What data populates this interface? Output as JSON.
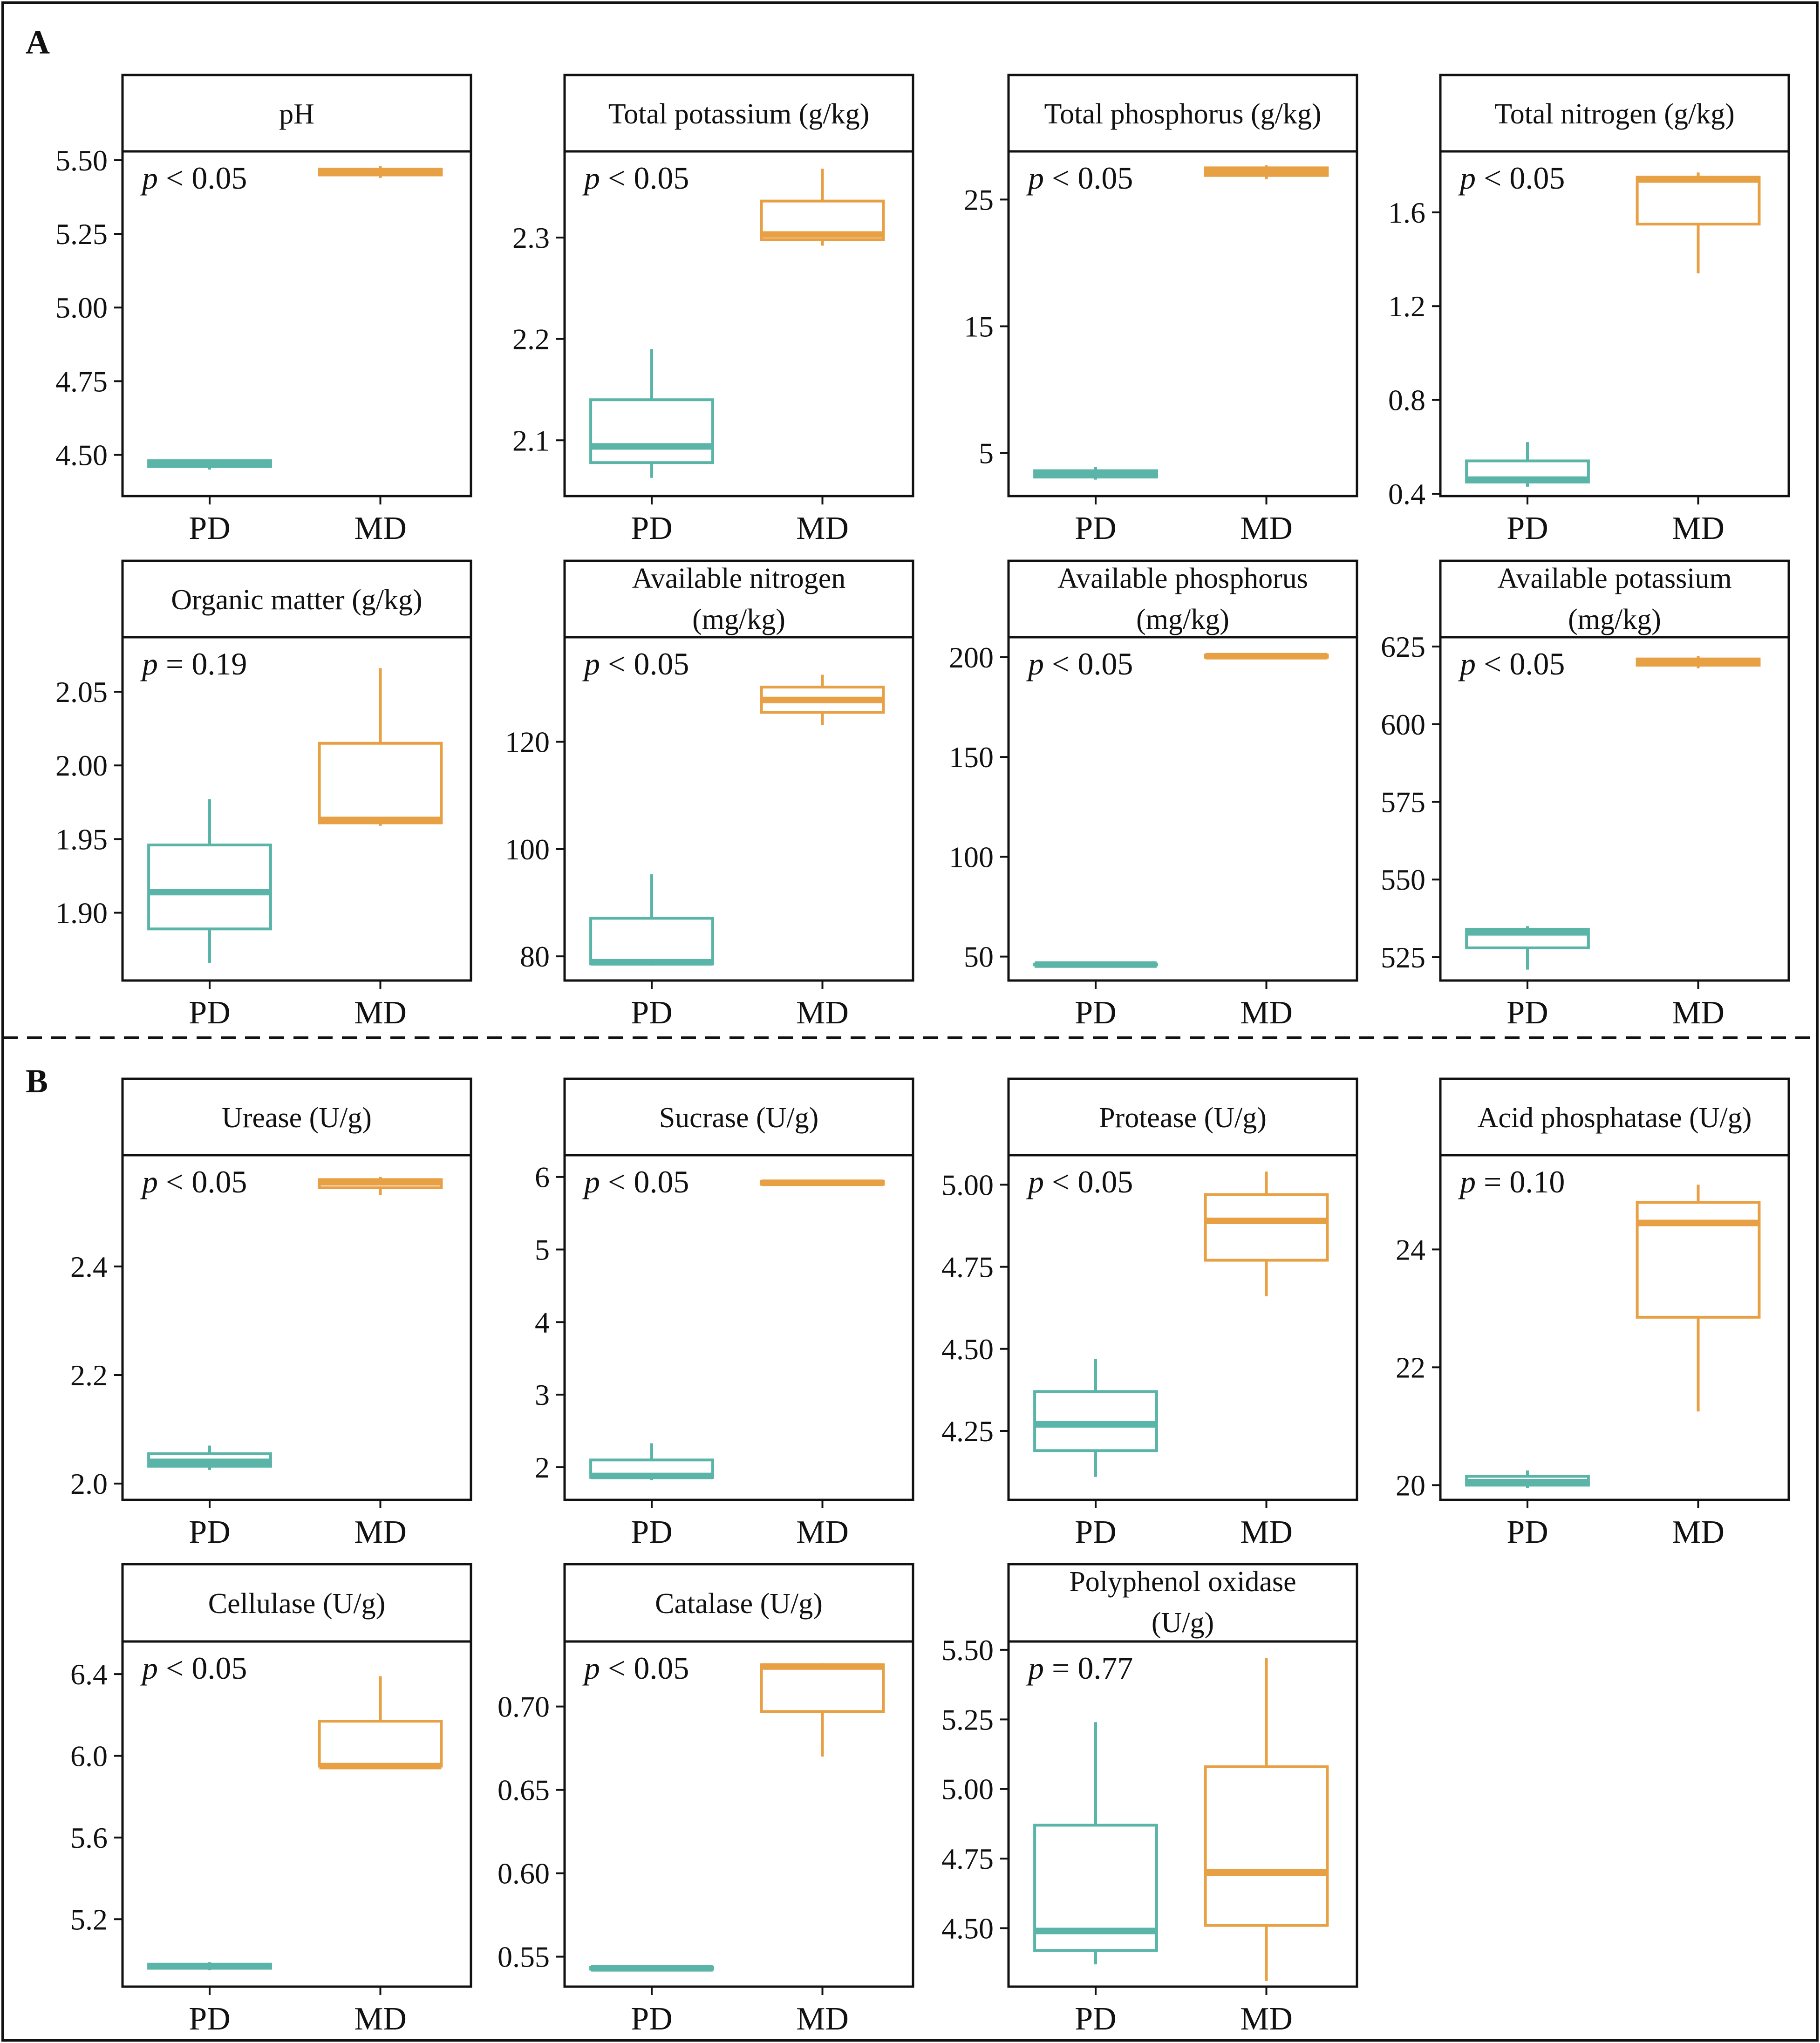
{
  "section_labels": [
    "A",
    "B"
  ],
  "group_labels": [
    "PD",
    "MD"
  ],
  "colors": {
    "PD": "#5ab5a8",
    "MD": "#e8a045",
    "axis": "#111111",
    "frame": "#111111"
  },
  "chart_data": [
    {
      "type": "box",
      "section": "A",
      "title": [
        "pH"
      ],
      "p_text": "p < 0.05",
      "categories": [
        "PD",
        "MD"
      ],
      "yticks": [
        4.5,
        4.75,
        5.0,
        5.25,
        5.5
      ],
      "tick_labels": [
        "4.50",
        "4.75",
        "5.00",
        "5.25",
        "5.50"
      ],
      "ylim": [
        4.36,
        5.53
      ],
      "boxes": [
        {
          "group": "PD",
          "min": 4.45,
          "q1": 4.46,
          "median": 4.47,
          "q3": 4.48,
          "max": 4.48
        },
        {
          "group": "MD",
          "min": 5.44,
          "q1": 5.45,
          "median": 5.46,
          "q3": 5.47,
          "max": 5.48
        }
      ]
    },
    {
      "type": "box",
      "section": "A",
      "title": [
        "Total potassium (g/kg)"
      ],
      "p_text": "p < 0.05",
      "categories": [
        "PD",
        "MD"
      ],
      "yticks": [
        2.1,
        2.2,
        2.3
      ],
      "tick_labels": [
        "2.1",
        "2.2",
        "2.3"
      ],
      "ylim": [
        2.045,
        2.385
      ],
      "boxes": [
        {
          "group": "PD",
          "min": 2.063,
          "q1": 2.078,
          "median": 2.094,
          "q3": 2.14,
          "max": 2.19
        },
        {
          "group": "MD",
          "min": 2.292,
          "q1": 2.298,
          "median": 2.303,
          "q3": 2.336,
          "max": 2.368
        }
      ]
    },
    {
      "type": "box",
      "section": "A",
      "title": [
        "Total phosphorus (g/kg)"
      ],
      "p_text": "p < 0.05",
      "categories": [
        "PD",
        "MD"
      ],
      "yticks": [
        5,
        15,
        25
      ],
      "tick_labels": [
        "5",
        "15",
        "25"
      ],
      "ylim": [
        1.6,
        28.8
      ],
      "boxes": [
        {
          "group": "PD",
          "min": 2.9,
          "q1": 3.1,
          "median": 3.3,
          "q3": 3.6,
          "max": 3.9
        },
        {
          "group": "MD",
          "min": 26.6,
          "q1": 26.9,
          "median": 27.2,
          "q3": 27.5,
          "max": 27.7
        }
      ]
    },
    {
      "type": "box",
      "section": "A",
      "title": [
        "Total nitrogen (g/kg)"
      ],
      "p_text": "p < 0.05",
      "categories": [
        "PD",
        "MD"
      ],
      "yticks": [
        0.4,
        0.8,
        1.2,
        1.6
      ],
      "tick_labels": [
        "0.4",
        "0.8",
        "1.2",
        "1.6"
      ],
      "ylim": [
        0.39,
        1.86
      ],
      "boxes": [
        {
          "group": "PD",
          "min": 0.43,
          "q1": 0.45,
          "median": 0.46,
          "q3": 0.54,
          "max": 0.62
        },
        {
          "group": "MD",
          "min": 1.34,
          "q1": 1.55,
          "median": 1.74,
          "q3": 1.75,
          "max": 1.77
        }
      ]
    },
    {
      "type": "box",
      "section": "A",
      "title": [
        "Organic matter (g/kg)"
      ],
      "p_text": "p = 0.19",
      "categories": [
        "PD",
        "MD"
      ],
      "yticks": [
        1.9,
        1.95,
        2.0,
        2.05
      ],
      "tick_labels": [
        "1.90",
        "1.95",
        "2.00",
        "2.05"
      ],
      "ylim": [
        1.854,
        2.087
      ],
      "boxes": [
        {
          "group": "PD",
          "min": 1.866,
          "q1": 1.889,
          "median": 1.914,
          "q3": 1.946,
          "max": 1.977
        },
        {
          "group": "MD",
          "min": 1.959,
          "q1": 1.961,
          "median": 1.963,
          "q3": 2.015,
          "max": 2.066
        }
      ]
    },
    {
      "type": "box",
      "section": "A",
      "title": [
        "Available nitrogen",
        "(mg/kg)"
      ],
      "p_text": "p < 0.05",
      "categories": [
        "PD",
        "MD"
      ],
      "yticks": [
        80,
        100,
        120
      ],
      "tick_labels": [
        "80",
        "100",
        "120"
      ],
      "ylim": [
        75.5,
        139.5
      ],
      "boxes": [
        {
          "group": "PD",
          "min": 78.3,
          "q1": 78.6,
          "median": 78.9,
          "q3": 87.1,
          "max": 95.3
        },
        {
          "group": "MD",
          "min": 123.1,
          "q1": 125.5,
          "median": 127.8,
          "q3": 130.2,
          "max": 132.5
        }
      ]
    },
    {
      "type": "box",
      "section": "A",
      "title": [
        "Available phosphorus",
        "(mg/kg)"
      ],
      "p_text": "p < 0.05",
      "categories": [
        "PD",
        "MD"
      ],
      "yticks": [
        50,
        100,
        150,
        200
      ],
      "tick_labels": [
        "50",
        "100",
        "150",
        "200"
      ],
      "ylim": [
        38,
        210
      ],
      "boxes": [
        {
          "group": "PD",
          "min": 45.6,
          "q1": 45.8,
          "median": 46.0,
          "q3": 46.2,
          "max": 46.4
        },
        {
          "group": "MD",
          "min": 199.5,
          "q1": 200,
          "median": 200.5,
          "q3": 201,
          "max": 201.5
        }
      ]
    },
    {
      "type": "box",
      "section": "A",
      "title": [
        "Available potassium",
        "(mg/kg)"
      ],
      "p_text": "p < 0.05",
      "categories": [
        "PD",
        "MD"
      ],
      "yticks": [
        525,
        550,
        575,
        600,
        625
      ],
      "tick_labels": [
        "525",
        "550",
        "575",
        "600",
        "625"
      ],
      "ylim": [
        517.5,
        628
      ],
      "boxes": [
        {
          "group": "PD",
          "min": 521,
          "q1": 528,
          "median": 533,
          "q3": 534,
          "max": 535
        },
        {
          "group": "MD",
          "min": 618,
          "q1": 619,
          "median": 620,
          "q3": 621,
          "max": 622
        }
      ]
    },
    {
      "type": "box",
      "section": "B",
      "title": [
        "Urease (U/g)"
      ],
      "p_text": "p < 0.05",
      "categories": [
        "PD",
        "MD"
      ],
      "yticks": [
        2.0,
        2.2,
        2.4
      ],
      "tick_labels": [
        "2.0",
        "2.2",
        "2.4"
      ],
      "ylim": [
        1.97,
        2.605
      ],
      "boxes": [
        {
          "group": "PD",
          "min": 2.025,
          "q1": 2.032,
          "median": 2.04,
          "q3": 2.055,
          "max": 2.07
        },
        {
          "group": "MD",
          "min": 2.532,
          "q1": 2.545,
          "median": 2.555,
          "q3": 2.56,
          "max": 2.565
        }
      ]
    },
    {
      "type": "box",
      "section": "B",
      "title": [
        "Sucrase (U/g)"
      ],
      "p_text": "p < 0.05",
      "categories": [
        "PD",
        "MD"
      ],
      "yticks": [
        2,
        3,
        4,
        5,
        6
      ],
      "tick_labels": [
        "2",
        "3",
        "4",
        "5",
        "6"
      ],
      "ylim": [
        1.55,
        6.3
      ],
      "boxes": [
        {
          "group": "PD",
          "min": 1.82,
          "q1": 1.86,
          "median": 1.88,
          "q3": 2.1,
          "max": 2.33
        },
        {
          "group": "MD",
          "min": 5.88,
          "q1": 5.9,
          "median": 5.92,
          "q3": 5.94,
          "max": 5.96
        }
      ]
    },
    {
      "type": "box",
      "section": "B",
      "title": [
        "Protease (U/g)"
      ],
      "p_text": "p < 0.05",
      "categories": [
        "PD",
        "MD"
      ],
      "yticks": [
        4.25,
        4.5,
        4.75,
        5.0
      ],
      "tick_labels": [
        "4.25",
        "4.50",
        "4.75",
        "5.00"
      ],
      "ylim": [
        4.04,
        5.09
      ],
      "boxes": [
        {
          "group": "PD",
          "min": 4.11,
          "q1": 4.19,
          "median": 4.27,
          "q3": 4.37,
          "max": 4.47
        },
        {
          "group": "MD",
          "min": 4.66,
          "q1": 4.77,
          "median": 4.89,
          "q3": 4.97,
          "max": 5.04
        }
      ]
    },
    {
      "type": "box",
      "section": "B",
      "title": [
        "Acid phosphatase (U/g)"
      ],
      "p_text": "p = 0.10",
      "categories": [
        "PD",
        "MD"
      ],
      "yticks": [
        20,
        22,
        24
      ],
      "tick_labels": [
        "20",
        "22",
        "24"
      ],
      "ylim": [
        19.75,
        25.6
      ],
      "boxes": [
        {
          "group": "PD",
          "min": 19.95,
          "q1": 20.0,
          "median": 20.05,
          "q3": 20.15,
          "max": 20.25
        },
        {
          "group": "MD",
          "min": 21.25,
          "q1": 22.85,
          "median": 24.45,
          "q3": 24.8,
          "max": 25.1
        }
      ]
    },
    {
      "type": "box",
      "section": "B",
      "title": [
        "Cellulase (U/g)"
      ],
      "p_text": "p < 0.05",
      "categories": [
        "PD",
        "MD"
      ],
      "yticks": [
        5.2,
        5.6,
        6.0,
        6.4
      ],
      "tick_labels": [
        "5.2",
        "5.6",
        "6.0",
        "6.4"
      ],
      "ylim": [
        4.87,
        6.56
      ],
      "boxes": [
        {
          "group": "PD",
          "min": 4.95,
          "q1": 4.96,
          "median": 4.97,
          "q3": 4.98,
          "max": 4.99
        },
        {
          "group": "MD",
          "min": 5.95,
          "q1": 5.95,
          "median": 5.95,
          "q3": 6.17,
          "max": 6.39
        }
      ]
    },
    {
      "type": "box",
      "section": "B",
      "title": [
        "Catalase (U/g)"
      ],
      "p_text": "p < 0.05",
      "categories": [
        "PD",
        "MD"
      ],
      "yticks": [
        0.55,
        0.6,
        0.65,
        0.7
      ],
      "tick_labels": [
        "0.55",
        "0.60",
        "0.65",
        "0.70"
      ],
      "ylim": [
        0.532,
        0.739
      ],
      "boxes": [
        {
          "group": "PD",
          "min": 0.5415,
          "q1": 0.5425,
          "median": 0.543,
          "q3": 0.5435,
          "max": 0.5445
        },
        {
          "group": "MD",
          "min": 0.67,
          "q1": 0.697,
          "median": 0.724,
          "q3": 0.725,
          "max": 0.726
        }
      ]
    },
    {
      "type": "box",
      "section": "B",
      "title": [
        "Polyphenol oxidase",
        "(U/g)"
      ],
      "p_text": "p = 0.77",
      "categories": [
        "PD",
        "MD"
      ],
      "yticks": [
        4.5,
        4.75,
        5.0,
        5.25,
        5.5
      ],
      "tick_labels": [
        "4.50",
        "4.75",
        "5.00",
        "5.25",
        "5.50"
      ],
      "ylim": [
        4.29,
        5.53
      ],
      "boxes": [
        {
          "group": "PD",
          "min": 4.37,
          "q1": 4.42,
          "median": 4.49,
          "q3": 4.87,
          "max": 5.24
        },
        {
          "group": "MD",
          "min": 4.31,
          "q1": 4.51,
          "median": 4.7,
          "q3": 5.08,
          "max": 5.47
        }
      ]
    }
  ]
}
